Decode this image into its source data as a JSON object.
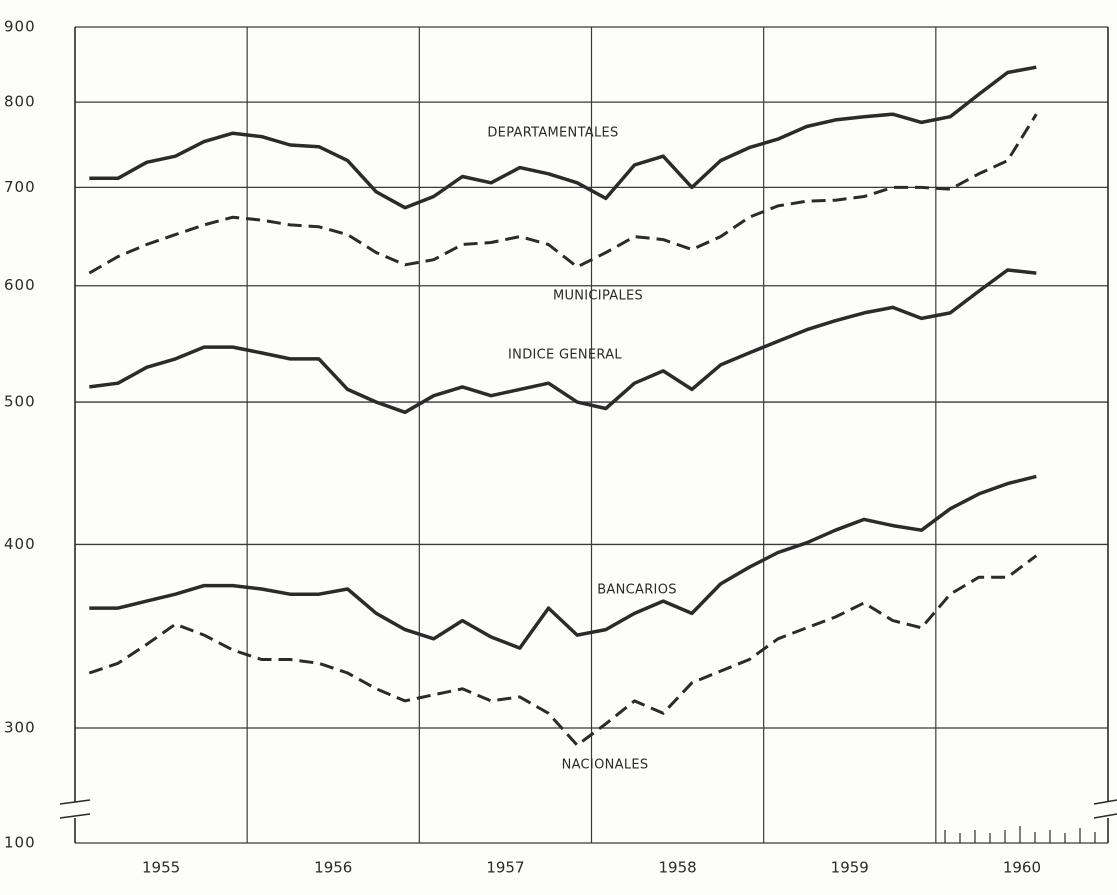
{
  "chart_data": {
    "type": "line",
    "categories": [
      null,
      null,
      null,
      "1955",
      null,
      null,
      null,
      null,
      null,
      "1956",
      null,
      null,
      null,
      null,
      null,
      "1957",
      null,
      null,
      null,
      null,
      null,
      "1958",
      null,
      null,
      null,
      null,
      null,
      "1959",
      null,
      null,
      null,
      null,
      null,
      "1960",
      null,
      null
    ],
    "series": [
      {
        "name": "DEPARTAMENTALES",
        "color": "#2b2b2b",
        "linestyle": "solid",
        "values": [
          710,
          710,
          728,
          735,
          752,
          762,
          758,
          748,
          746,
          730,
          695,
          678,
          690,
          712,
          705,
          722,
          715,
          705,
          688,
          725,
          735,
          700,
          730,
          745,
          755,
          770,
          778,
          782,
          785,
          775,
          782,
          810,
          838,
          845,
          null,
          null
        ]
      },
      {
        "name": "MUNICIPALES",
        "color": "#2b2b2b",
        "linestyle": "dashed",
        "values": [
          612,
          628,
          640,
          650,
          660,
          668,
          665,
          660,
          658,
          650,
          632,
          620,
          625,
          640,
          642,
          648,
          640,
          618,
          632,
          648,
          645,
          635,
          648,
          668,
          680,
          685,
          686,
          690,
          700,
          700,
          698,
          715,
          730,
          785,
          null,
          null
        ]
      },
      {
        "name": "INDICE GENERAL",
        "color": "#2b2b2b",
        "linestyle": "solid",
        "values": [
          512,
          515,
          528,
          535,
          545,
          545,
          540,
          535,
          535,
          510,
          500,
          492,
          505,
          512,
          505,
          510,
          515,
          500,
          495,
          515,
          525,
          510,
          530,
          540,
          550,
          560,
          568,
          575,
          580,
          570,
          575,
          595,
          615,
          612,
          null,
          null
        ]
      },
      {
        "name": "BANCARIOS",
        "color": "#2b2b2b",
        "linestyle": "solid",
        "values": [
          362,
          362,
          366,
          370,
          375,
          375,
          373,
          370,
          370,
          373,
          359,
          350,
          345,
          355,
          346,
          340,
          362,
          347,
          350,
          359,
          366,
          359,
          376,
          386,
          395,
          401,
          409,
          416,
          412,
          409,
          423,
          433,
          440,
          445,
          null,
          null
        ]
      },
      {
        "name": "NACIONALES",
        "color": "#2b2b2b",
        "linestyle": "dashed",
        "values": [
          327,
          332,
          342,
          353,
          347,
          339,
          334,
          334,
          332,
          327,
          319,
          313,
          316,
          319,
          313,
          315,
          307,
          292,
          302,
          313,
          307,
          322,
          328,
          334,
          345,
          351,
          357,
          365,
          355,
          351,
          370,
          380,
          380,
          393,
          null,
          null
        ]
      }
    ],
    "ylim": [
      100,
      900
    ],
    "yticks": [
      100,
      300,
      400,
      500,
      600,
      700,
      800,
      900
    ],
    "log_scale": true,
    "axis_break": true,
    "grid": true
  }
}
